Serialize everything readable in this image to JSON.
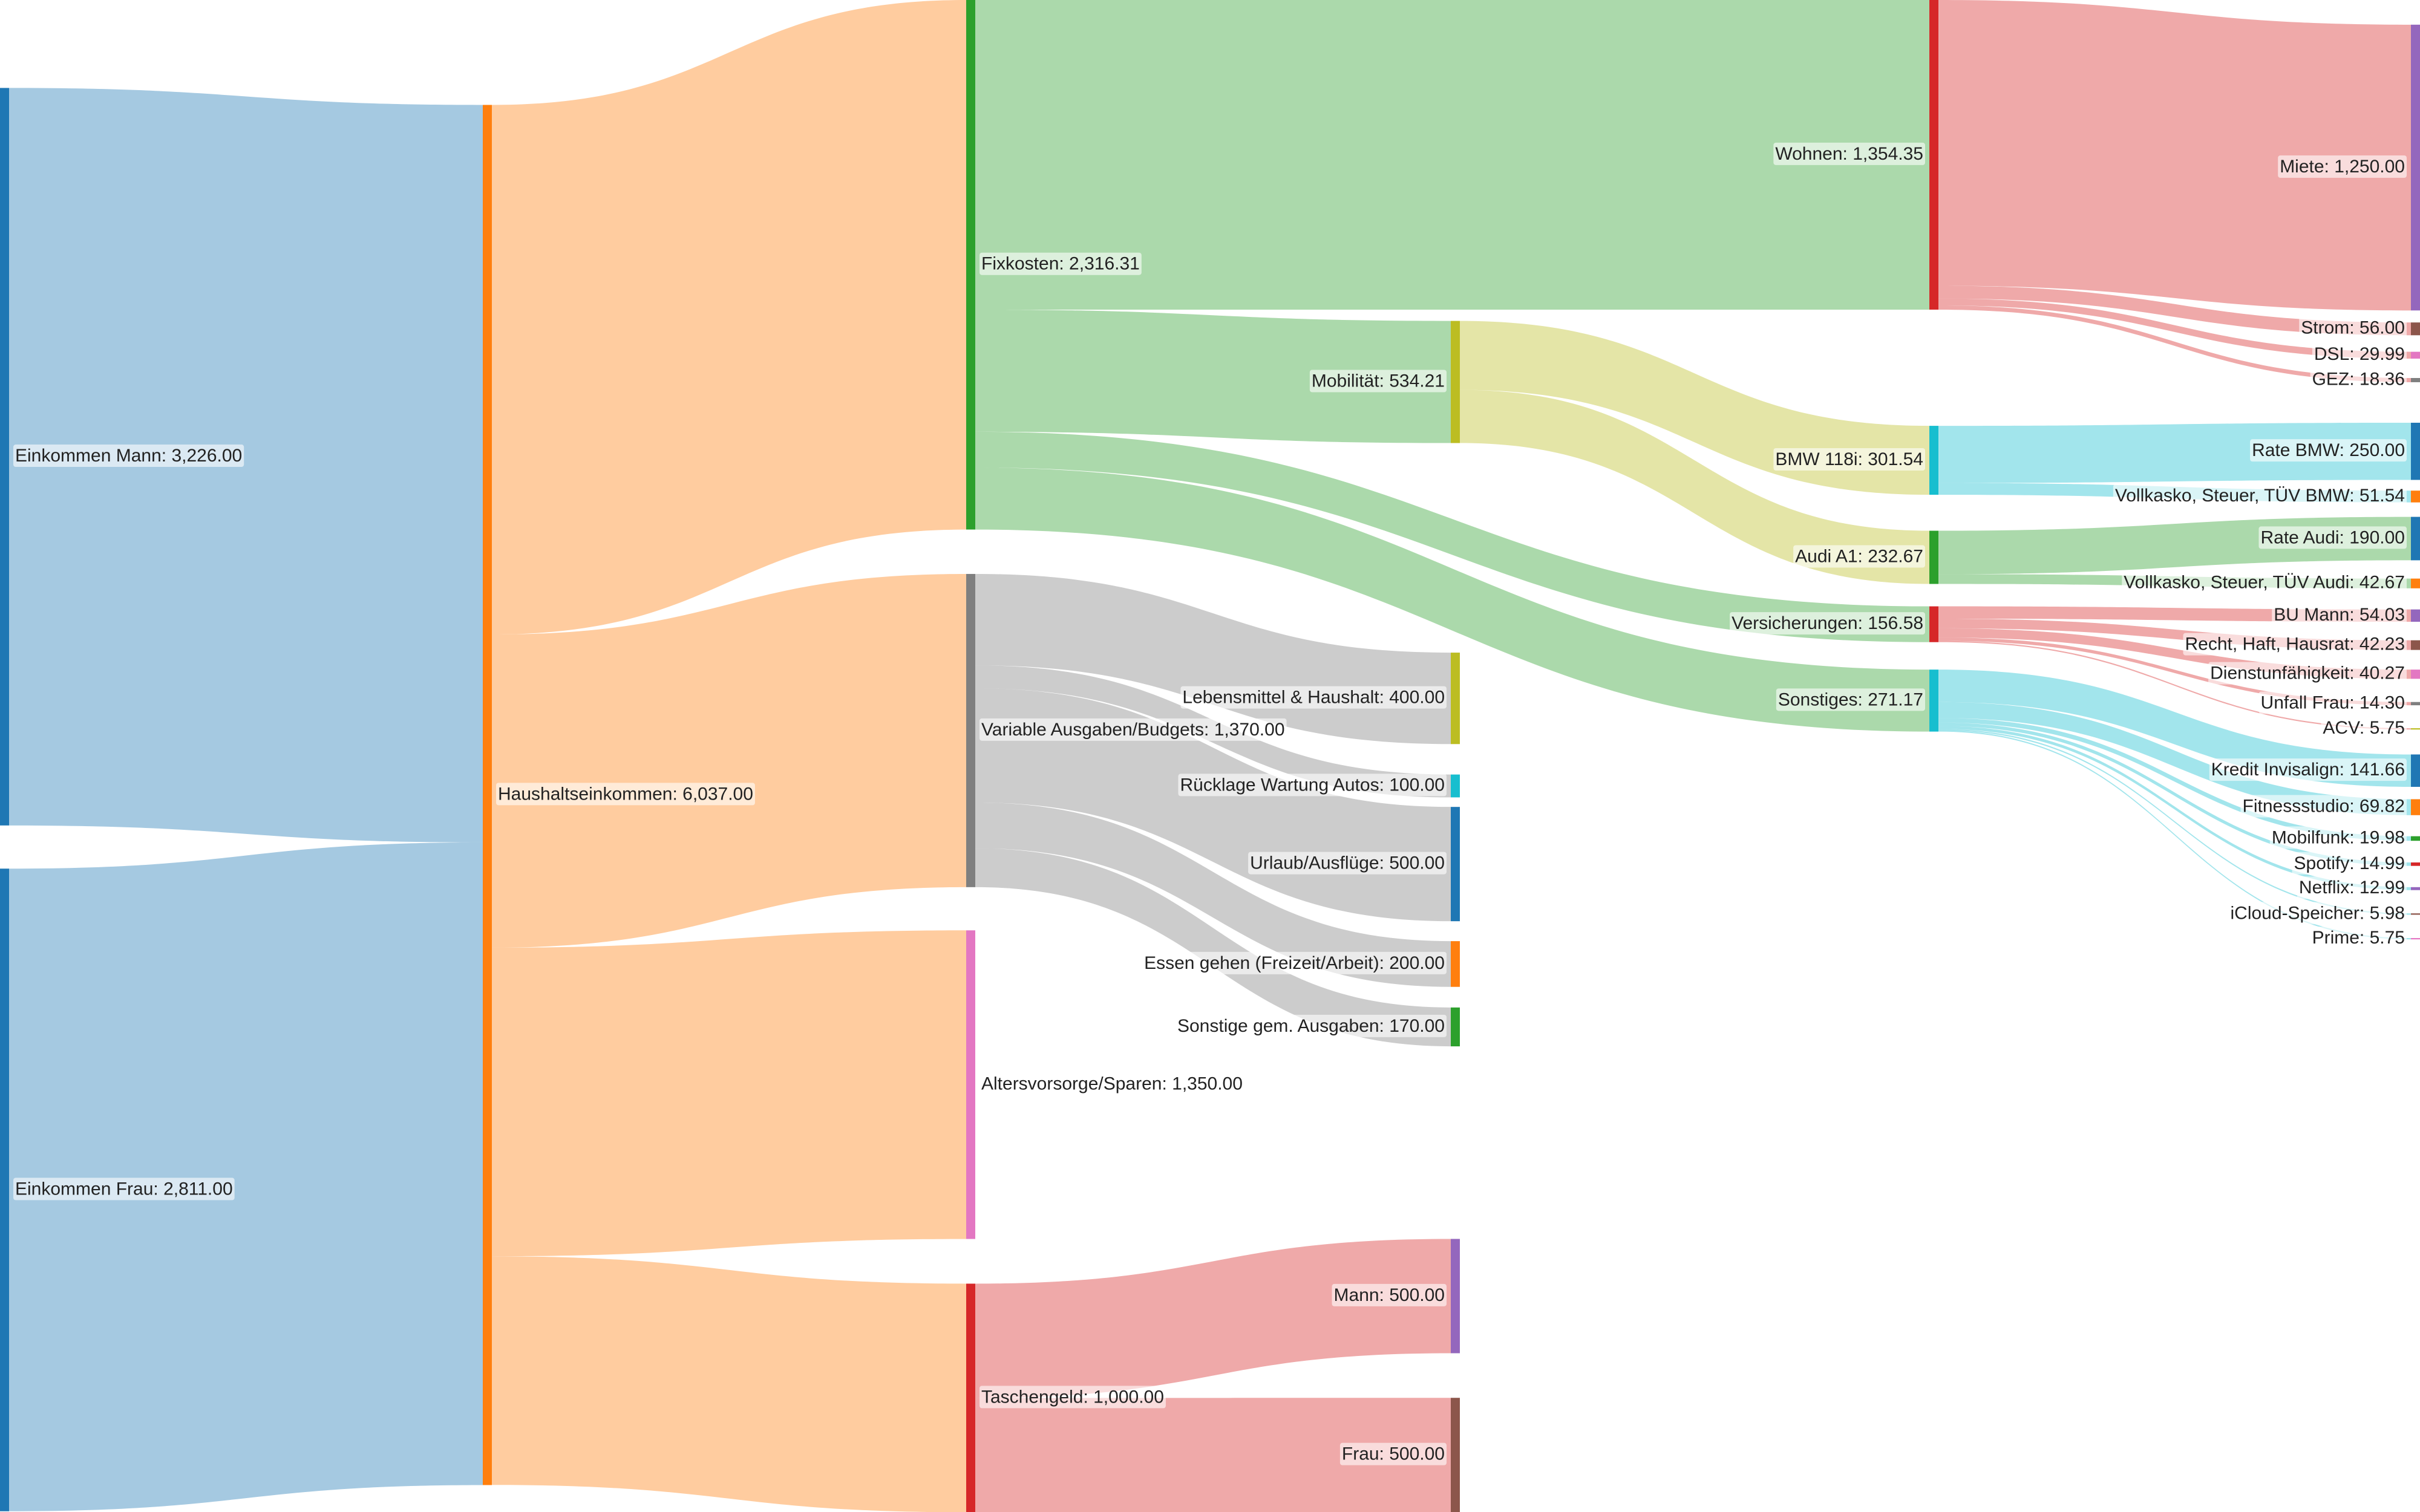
{
  "chart_data": {
    "type": "sankey",
    "nodes": [
      {
        "label": "Einkommen Mann: 3,226.00",
        "value": 3226,
        "color": "#1f77b4"
      },
      {
        "label": "Einkommen Frau: 2,811.00",
        "value": 2811,
        "color": "#1f77b4"
      },
      {
        "label": "Haushaltseinkommen: 6,037.00",
        "value": 6037,
        "color": "#ff7f0e"
      },
      {
        "label": "Fixkosten: 2,316.31",
        "value": 2316.31,
        "color": "#2ca02c"
      },
      {
        "label": "Variable Ausgaben/Budgets: 1,370.00",
        "value": 1370,
        "color": "#7f7f7f"
      },
      {
        "label": "Altersvorsorge/Sparen: 1,350.00",
        "value": 1350,
        "color": "#e377c2"
      },
      {
        "label": "Taschengeld: 1,000.00",
        "value": 1000,
        "color": "#d62728"
      },
      {
        "label": "Mobilität: 534.21",
        "value": 534.21,
        "color": "#bcbd22"
      },
      {
        "label": "Lebensmittel & Haushalt: 400.00",
        "value": 400,
        "color": "#bcbd22"
      },
      {
        "label": "Rücklage Wartung Autos: 100.00",
        "value": 100,
        "color": "#17becf"
      },
      {
        "label": "Urlaub/Ausflüge: 500.00",
        "value": 500,
        "color": "#1f77b4"
      },
      {
        "label": "Essen gehen (Freizeit/Arbeit): 200.00",
        "value": 200,
        "color": "#ff7f0e"
      },
      {
        "label": "Sonstige gem. Ausgaben: 170.00",
        "value": 170,
        "color": "#2ca02c"
      },
      {
        "label": "Mann: 500.00",
        "value": 500,
        "color": "#9467bd"
      },
      {
        "label": "Frau: 500.00",
        "value": 500,
        "color": "#8c564b"
      },
      {
        "label": "Wohnen: 1,354.35",
        "value": 1354.35,
        "color": "#d62728"
      },
      {
        "label": "BMW 118i: 301.54",
        "value": 301.54,
        "color": "#17becf"
      },
      {
        "label": "Audi A1: 232.67",
        "value": 232.67,
        "color": "#2ca02c"
      },
      {
        "label": "Versicherungen: 156.58",
        "value": 156.58,
        "color": "#d62728"
      },
      {
        "label": "Sonstiges: 271.17",
        "value": 271.17,
        "color": "#17becf"
      },
      {
        "label": "Miete: 1,250.00",
        "value": 1250,
        "color": "#9467bd"
      },
      {
        "label": "Strom: 56.00",
        "value": 56,
        "color": "#8c564b"
      },
      {
        "label": "DSL: 29.99",
        "value": 29.99,
        "color": "#e377c2"
      },
      {
        "label": "GEZ: 18.36",
        "value": 18.36,
        "color": "#7f7f7f"
      },
      {
        "label": "Rate BMW: 250.00",
        "value": 250,
        "color": "#1f77b4"
      },
      {
        "label": "Vollkasko, Steuer, TÜV BMW: 51.54",
        "value": 51.54,
        "color": "#ff7f0e"
      },
      {
        "label": "Rate Audi: 190.00",
        "value": 190,
        "color": "#1f77b4"
      },
      {
        "label": "Vollkasko, Steuer, TÜV Audi: 42.67",
        "value": 42.67,
        "color": "#ff7f0e"
      },
      {
        "label": "BU Mann: 54.03",
        "value": 54.03,
        "color": "#9467bd"
      },
      {
        "label": "Recht, Haft, Hausrat: 42.23",
        "value": 42.23,
        "color": "#8c564b"
      },
      {
        "label": "Dienstunfähigkeit: 40.27",
        "value": 40.27,
        "color": "#e377c2"
      },
      {
        "label": "Unfall Frau: 14.30",
        "value": 14.3,
        "color": "#7f7f7f"
      },
      {
        "label": "ACV: 5.75",
        "value": 5.75,
        "color": "#bcbd22"
      },
      {
        "label": "Kredit Invisalign: 141.66",
        "value": 141.66,
        "color": "#1f77b4"
      },
      {
        "label": "Fitnessstudio: 69.82",
        "value": 69.82,
        "color": "#ff7f0e"
      },
      {
        "label": "Mobilfunk: 19.98",
        "value": 19.98,
        "color": "#2ca02c"
      },
      {
        "label": "Spotify: 14.99",
        "value": 14.99,
        "color": "#d62728"
      },
      {
        "label": "Netflix: 12.99",
        "value": 12.99,
        "color": "#9467bd"
      },
      {
        "label": "iCloud-Speicher: 5.98",
        "value": 5.98,
        "color": "#8c564b"
      },
      {
        "label": "Prime: 5.75",
        "value": 5.75,
        "color": "#e377c2"
      }
    ],
    "links": [
      {
        "source": 0,
        "target": 2,
        "value": 3226
      },
      {
        "source": 1,
        "target": 2,
        "value": 2811
      },
      {
        "source": 2,
        "target": 3,
        "value": 2316.31
      },
      {
        "source": 2,
        "target": 4,
        "value": 1370
      },
      {
        "source": 2,
        "target": 5,
        "value": 1350
      },
      {
        "source": 2,
        "target": 6,
        "value": 1000
      },
      {
        "source": 3,
        "target": 15,
        "value": 1354.35
      },
      {
        "source": 3,
        "target": 7,
        "value": 534.21
      },
      {
        "source": 3,
        "target": 18,
        "value": 156.58
      },
      {
        "source": 3,
        "target": 19,
        "value": 271.17
      },
      {
        "source": 4,
        "target": 8,
        "value": 400
      },
      {
        "source": 4,
        "target": 9,
        "value": 100
      },
      {
        "source": 4,
        "target": 10,
        "value": 500
      },
      {
        "source": 4,
        "target": 11,
        "value": 200
      },
      {
        "source": 4,
        "target": 12,
        "value": 170
      },
      {
        "source": 6,
        "target": 13,
        "value": 500
      },
      {
        "source": 6,
        "target": 14,
        "value": 500
      },
      {
        "source": 7,
        "target": 16,
        "value": 301.54
      },
      {
        "source": 7,
        "target": 17,
        "value": 232.67
      },
      {
        "source": 15,
        "target": 20,
        "value": 1250
      },
      {
        "source": 15,
        "target": 21,
        "value": 56
      },
      {
        "source": 15,
        "target": 22,
        "value": 29.99
      },
      {
        "source": 15,
        "target": 23,
        "value": 18.36
      },
      {
        "source": 16,
        "target": 24,
        "value": 250
      },
      {
        "source": 16,
        "target": 25,
        "value": 51.54
      },
      {
        "source": 17,
        "target": 26,
        "value": 190
      },
      {
        "source": 17,
        "target": 27,
        "value": 42.67
      },
      {
        "source": 18,
        "target": 28,
        "value": 54.03
      },
      {
        "source": 18,
        "target": 29,
        "value": 42.23
      },
      {
        "source": 18,
        "target": 30,
        "value": 40.27
      },
      {
        "source": 18,
        "target": 31,
        "value": 14.3
      },
      {
        "source": 18,
        "target": 32,
        "value": 5.75
      },
      {
        "source": 19,
        "target": 33,
        "value": 141.66
      },
      {
        "source": 19,
        "target": 34,
        "value": 69.82
      },
      {
        "source": 19,
        "target": 35,
        "value": 19.98
      },
      {
        "source": 19,
        "target": 36,
        "value": 14.99
      },
      {
        "source": 19,
        "target": 37,
        "value": 12.99
      },
      {
        "source": 19,
        "target": 38,
        "value": 5.98
      },
      {
        "source": 19,
        "target": 39,
        "value": 5.75
      }
    ]
  }
}
